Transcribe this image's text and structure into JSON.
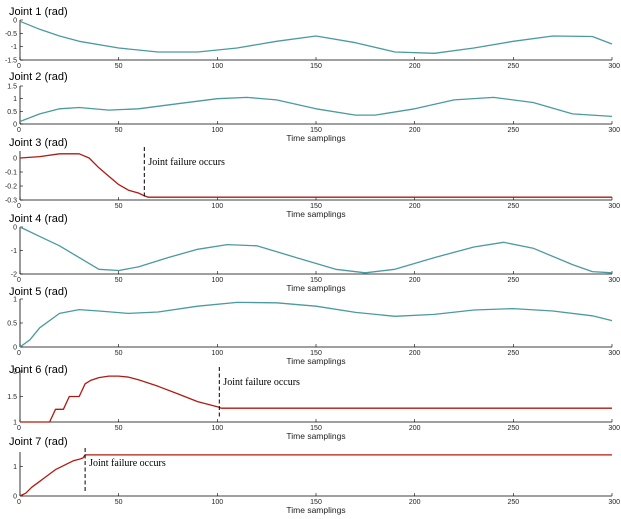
{
  "colors": {
    "normal": "#4a9aa0",
    "failed": "#b01a10",
    "axis": "#000000"
  },
  "chart_data": [
    {
      "type": "line",
      "title": "Joint 1 (rad)",
      "xlabel": "",
      "xlim": [
        0,
        300
      ],
      "ylim": [
        -1.5,
        0
      ],
      "xticks": [
        0,
        50,
        100,
        150,
        200,
        250,
        300
      ],
      "yticks": [
        -1.5,
        -1,
        -0.5,
        0
      ],
      "ytick_labels": [
        "-1.5",
        "-1",
        "-0.5",
        "0"
      ],
      "series": [
        {
          "color": "#4a9aa0",
          "x": [
            0,
            10,
            20,
            30,
            50,
            70,
            90,
            110,
            130,
            150,
            170,
            190,
            210,
            230,
            250,
            270,
            290,
            300
          ],
          "y": [
            -0.05,
            -0.35,
            -0.6,
            -0.8,
            -1.05,
            -1.2,
            -1.2,
            -1.05,
            -0.8,
            -0.6,
            -0.85,
            -1.2,
            -1.25,
            -1.05,
            -0.8,
            -0.6,
            -0.62,
            -0.9
          ]
        }
      ]
    },
    {
      "type": "line",
      "title": "Joint 2 (rad)",
      "xlabel": "Time samplings",
      "xlim": [
        0,
        300
      ],
      "ylim": [
        0,
        1.5
      ],
      "xticks": [
        0,
        50,
        100,
        150,
        200,
        250,
        300
      ],
      "yticks": [
        0,
        0.5,
        1,
        1.5
      ],
      "ytick_labels": [
        "0",
        "0.5",
        "1",
        "1.5"
      ],
      "series": [
        {
          "color": "#4a9aa0",
          "x": [
            0,
            10,
            20,
            30,
            45,
            60,
            80,
            100,
            115,
            130,
            150,
            170,
            180,
            200,
            220,
            240,
            260,
            280,
            300
          ],
          "y": [
            0.1,
            0.4,
            0.6,
            0.65,
            0.55,
            0.6,
            0.8,
            1.0,
            1.05,
            0.95,
            0.6,
            0.35,
            0.35,
            0.6,
            0.95,
            1.05,
            0.85,
            0.4,
            0.3
          ]
        }
      ]
    },
    {
      "type": "line",
      "title": "Joint 3 (rad)",
      "xlabel": "Time samplings",
      "xlim": [
        0,
        300
      ],
      "ylim": [
        -0.3,
        0.05
      ],
      "xticks": [
        0,
        50,
        100,
        150,
        200,
        250,
        300
      ],
      "yticks": [
        -0.3,
        -0.2,
        -0.1,
        0
      ],
      "ytick_labels": [
        "-0.3",
        "-0.2",
        "-0.1",
        "0"
      ],
      "series": [
        {
          "color": "#b01a10",
          "x": [
            0,
            10,
            20,
            30,
            35,
            40,
            45,
            50,
            55,
            60,
            63,
            65,
            100,
            200,
            300
          ],
          "y": [
            0.0,
            0.01,
            0.03,
            0.03,
            0.0,
            -0.07,
            -0.13,
            -0.19,
            -0.23,
            -0.25,
            -0.27,
            -0.28,
            -0.28,
            -0.28,
            -0.28
          ]
        }
      ],
      "annotation": {
        "text": "Joint failure occurs",
        "x": 63
      }
    },
    {
      "type": "line",
      "title": "Joint 4 (rad)",
      "xlabel": "Time samplings",
      "xlim": [
        0,
        300
      ],
      "ylim": [
        -2,
        0
      ],
      "xticks": [
        0,
        50,
        100,
        150,
        200,
        250,
        300
      ],
      "yticks": [
        -2,
        -1,
        0
      ],
      "ytick_labels": [
        "-2",
        "-1",
        "0"
      ],
      "series": [
        {
          "color": "#4a9aa0",
          "x": [
            0,
            10,
            20,
            30,
            40,
            50,
            60,
            75,
            90,
            105,
            120,
            140,
            160,
            175,
            190,
            210,
            230,
            245,
            260,
            280,
            290,
            300
          ],
          "y": [
            0.0,
            -0.4,
            -0.8,
            -1.3,
            -1.8,
            -1.85,
            -1.7,
            -1.3,
            -0.95,
            -0.75,
            -0.8,
            -1.3,
            -1.8,
            -1.95,
            -1.8,
            -1.3,
            -0.85,
            -0.65,
            -0.9,
            -1.6,
            -1.9,
            -1.95
          ]
        }
      ]
    },
    {
      "type": "line",
      "title": "Joint 5 (rad)",
      "xlabel": "Time samplings",
      "xlim": [
        0,
        300
      ],
      "ylim": [
        0,
        1
      ],
      "xticks": [
        0,
        50,
        100,
        150,
        200,
        250,
        300
      ],
      "yticks": [
        0,
        0.5,
        1
      ],
      "ytick_labels": [
        "0",
        "0.5",
        "1"
      ],
      "series": [
        {
          "color": "#4a9aa0",
          "x": [
            0,
            5,
            10,
            20,
            30,
            40,
            55,
            70,
            90,
            110,
            130,
            150,
            170,
            190,
            210,
            230,
            250,
            270,
            290,
            300
          ],
          "y": [
            0.0,
            0.15,
            0.4,
            0.7,
            0.78,
            0.75,
            0.7,
            0.73,
            0.85,
            0.93,
            0.92,
            0.85,
            0.72,
            0.64,
            0.68,
            0.77,
            0.8,
            0.75,
            0.65,
            0.55
          ]
        }
      ]
    },
    {
      "type": "line",
      "title": "Joint 6 (rad)",
      "xlabel": "Time samplings",
      "xlim": [
        0,
        300
      ],
      "ylim": [
        1,
        2
      ],
      "xticks": [
        0,
        50,
        100,
        150,
        200,
        250,
        300
      ],
      "yticks": [
        1,
        1.5,
        2
      ],
      "ytick_labels": [
        "1",
        "1.5",
        "2"
      ],
      "series": [
        {
          "color": "#b01a10",
          "x": [
            0,
            15,
            18,
            22,
            25,
            30,
            33,
            36,
            40,
            45,
            50,
            55,
            60,
            70,
            80,
            90,
            100,
            102,
            150,
            200,
            250,
            300
          ],
          "y": [
            1.0,
            1.0,
            1.25,
            1.25,
            1.5,
            1.5,
            1.75,
            1.82,
            1.87,
            1.9,
            1.9,
            1.88,
            1.83,
            1.7,
            1.55,
            1.4,
            1.3,
            1.27,
            1.27,
            1.27,
            1.27,
            1.27
          ]
        }
      ],
      "annotation": {
        "text": "Joint failure occurs",
        "x": 101
      }
    },
    {
      "type": "line",
      "title": "Joint 7 (rad)",
      "xlabel": "Time samplings",
      "xlim": [
        0,
        300
      ],
      "ylim": [
        0,
        1.5
      ],
      "xticks": [
        0,
        50,
        100,
        150,
        200,
        250,
        300
      ],
      "yticks": [
        0,
        1
      ],
      "ytick_labels": [
        "0",
        "1"
      ],
      "series": [
        {
          "color": "#b01a10",
          "x": [
            0,
            3,
            6,
            9,
            12,
            15,
            18,
            21,
            24,
            27,
            30,
            32,
            33,
            100,
            200,
            300
          ],
          "y": [
            0.0,
            0.1,
            0.3,
            0.45,
            0.6,
            0.75,
            0.9,
            1.0,
            1.1,
            1.2,
            1.25,
            1.3,
            1.4,
            1.4,
            1.4,
            1.4
          ]
        }
      ],
      "annotation": {
        "text": "Joint failure occurs",
        "x": 33
      }
    }
  ]
}
